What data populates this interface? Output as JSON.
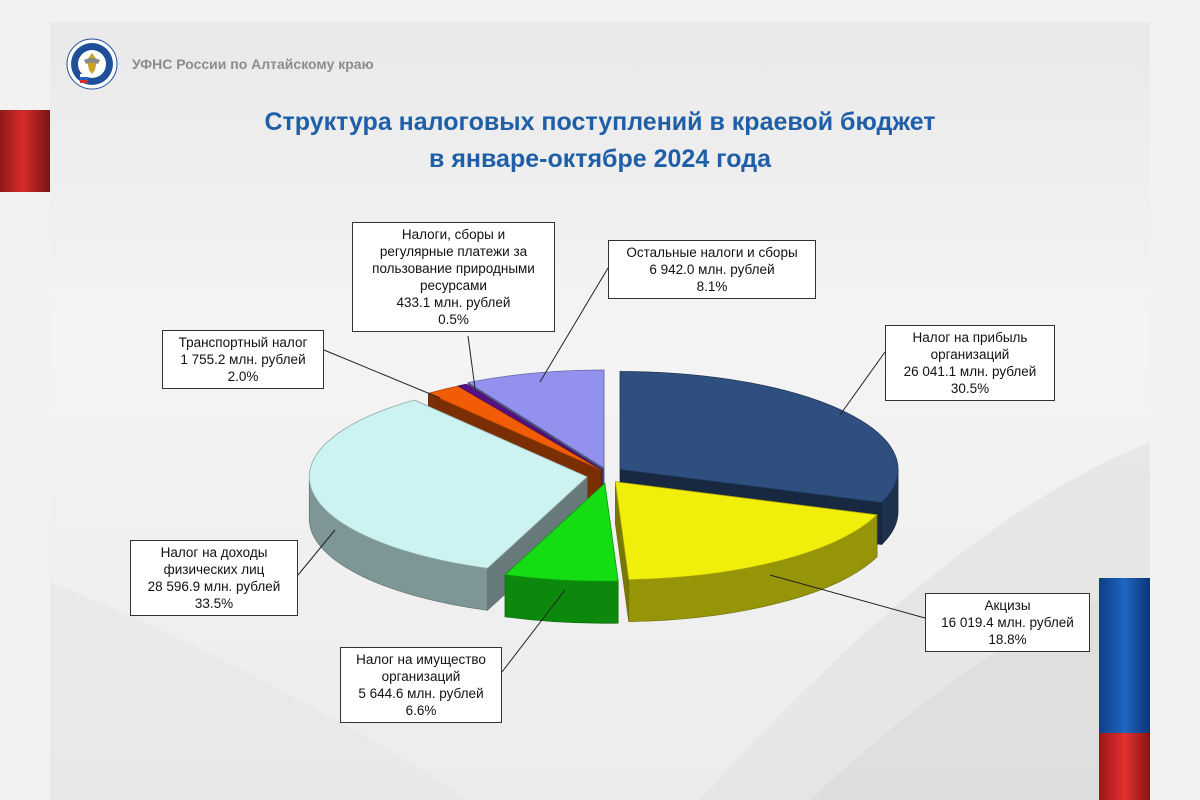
{
  "header": {
    "org_name": "УФНС России по Алтайскому краю",
    "title_line1": "Структура налоговых поступлений в краевой бюджет",
    "title_line2": "в январе-октябре 2024 года"
  },
  "colors": {
    "title": "#1f5fa8",
    "brand_red": "#d62c2c",
    "brand_blue": "#1e66c0"
  },
  "icons": {
    "logo": "fns-emblem-icon"
  },
  "chart_data": {
    "type": "pie",
    "title": "Структура налоговых поступлений в краевой бюджет в январе-октябре 2024 года",
    "unit": "млн. рублей",
    "slices": [
      {
        "name": "Налог на прибыль организаций",
        "value": 26041.1,
        "percent": 30.5,
        "value_label": "26 041.1 млн. рублей",
        "percent_label": "30.5%",
        "label_lines": [
          "Налог на прибыль",
          "организаций"
        ],
        "color": "#2e4f7f"
      },
      {
        "name": "Акцизы",
        "value": 16019.4,
        "percent": 18.8,
        "value_label": "16 019.4 млн. рублей",
        "percent_label": "18.8%",
        "label_lines": [
          "Акцизы"
        ],
        "color": "#f2ee0c"
      },
      {
        "name": "Налог на имущество организаций",
        "value": 5644.6,
        "percent": 6.6,
        "value_label": "5 644.6 млн. рублей",
        "percent_label": "6.6%",
        "label_lines": [
          "Налог на имущество",
          "организаций"
        ],
        "color": "#14dd14"
      },
      {
        "name": "Налог на доходы физических лиц",
        "value": 28596.9,
        "percent": 33.5,
        "value_label": "28 596.9 млн. рублей",
        "percent_label": "33.5%",
        "label_lines": [
          "Налог на доходы",
          "физических лиц"
        ],
        "color": "#cdf2f2"
      },
      {
        "name": "Транспортный налог",
        "value": 1755.2,
        "percent": 2.0,
        "value_label": "1 755.2 млн. рублей",
        "percent_label": "2.0%",
        "label_lines": [
          "Транспортный налог"
        ],
        "color": "#f25c05"
      },
      {
        "name": "Налоги, сборы и регулярные платежи за пользование природными ресурсами",
        "value": 433.1,
        "percent": 0.5,
        "value_label": "433.1 млн. рублей",
        "percent_label": "0.5%",
        "label_lines": [
          "Налоги, сборы и",
          "регулярные платежи за",
          "пользование природными",
          "ресурсами"
        ],
        "color": "#5a0f8a"
      },
      {
        "name": "Остальные налоги и сборы",
        "value": 6942.0,
        "percent": 8.1,
        "value_label": "6 942.0 млн. рублей",
        "percent_label": "8.1%",
        "label_lines": [
          "Остальные налоги и сборы"
        ],
        "color": "#9292ee"
      }
    ],
    "legend": "none",
    "style": "3d-exploded-pie"
  }
}
